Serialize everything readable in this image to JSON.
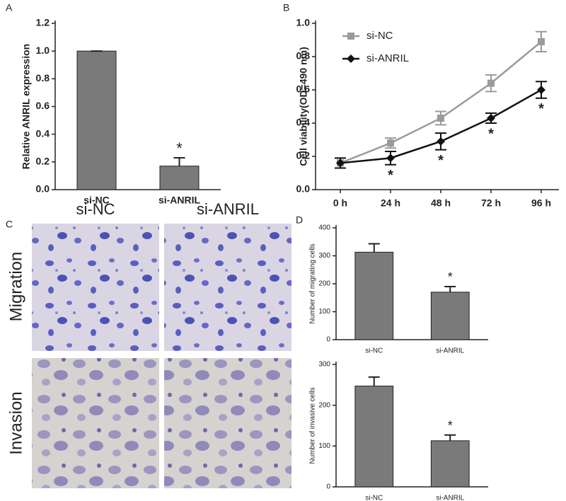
{
  "chart_data": [
    {
      "type": "bar",
      "panel_label": "A",
      "ylabel": "Relative ANRIL expression",
      "categories": [
        "si-NC",
        "si-ANRIL"
      ],
      "values": [
        1.0,
        0.17
      ],
      "errors": [
        0,
        0.06
      ],
      "color": "#7a7a7a",
      "ylim": [
        0,
        1.2
      ],
      "yticks": [
        {
          "value": 0,
          "label": "0.0"
        },
        {
          "value": 0.2,
          "label": "0.2"
        },
        {
          "value": 0.4,
          "label": "0.4"
        },
        {
          "value": 0.6,
          "label": "0.6"
        },
        {
          "value": 0.8,
          "label": "0.8"
        },
        {
          "value": 1.0,
          "label": "1.0"
        },
        {
          "value": 1.2,
          "label": "1.2"
        }
      ],
      "significant": [
        false,
        true
      ],
      "annotation": "*"
    },
    {
      "type": "line",
      "panel_label": "B",
      "ylabel": "Cell viability(OD=490 nm)",
      "categories": [
        "0 h",
        "24 h",
        "48 h",
        "72 h",
        "96 h"
      ],
      "series": [
        {
          "name": "si-NC",
          "color": "#9a9a9a",
          "marker": "square",
          "values": [
            0.16,
            0.28,
            0.43,
            0.64,
            0.89
          ],
          "errors": [
            0.03,
            0.03,
            0.04,
            0.05,
            0.06
          ],
          "significant": [
            false,
            false,
            false,
            false,
            false
          ]
        },
        {
          "name": "si-ANRIL",
          "color": "#111111",
          "marker": "diamond",
          "values": [
            0.16,
            0.19,
            0.29,
            0.43,
            0.6
          ],
          "errors": [
            0.03,
            0.04,
            0.05,
            0.03,
            0.05
          ],
          "significant": [
            false,
            true,
            true,
            true,
            true
          ]
        }
      ],
      "ylim": [
        0,
        1.0
      ],
      "yticks": [
        {
          "value": 0,
          "label": "0.0"
        },
        {
          "value": 0.2,
          "label": "0.2"
        },
        {
          "value": 0.4,
          "label": "0.4"
        },
        {
          "value": 0.6,
          "label": "0.6"
        },
        {
          "value": 0.8,
          "label": "0.8"
        },
        {
          "value": 1.0,
          "label": "1.0"
        }
      ],
      "annotation": "*",
      "legend": "upper left"
    },
    {
      "type": "bar",
      "panel_label": "D",
      "ylabel": "Number of migrating cells",
      "categories": [
        "si-NC",
        "si-ANRIL"
      ],
      "values": [
        313,
        170
      ],
      "errors": [
        30,
        20
      ],
      "color": "#7a7a7a",
      "ylim": [
        0,
        400
      ],
      "yticks": [
        0,
        100,
        200,
        300,
        400
      ],
      "significant": [
        false,
        true
      ],
      "annotation": "*"
    },
    {
      "type": "bar",
      "ylabel": "Number of invasive cells",
      "categories": [
        "si-NC",
        "si-ANRIL"
      ],
      "values": [
        247,
        113
      ],
      "errors": [
        22,
        14
      ],
      "color": "#7a7a7a",
      "ylim": [
        0,
        300
      ],
      "yticks": [
        0,
        100,
        200,
        300
      ],
      "significant": [
        false,
        true
      ],
      "annotation": "*"
    }
  ],
  "panel_c": {
    "panel_label": "C",
    "columns": [
      "si-NC",
      "si-ANRIL"
    ],
    "rows": [
      "Migration",
      "Invasion"
    ]
  }
}
